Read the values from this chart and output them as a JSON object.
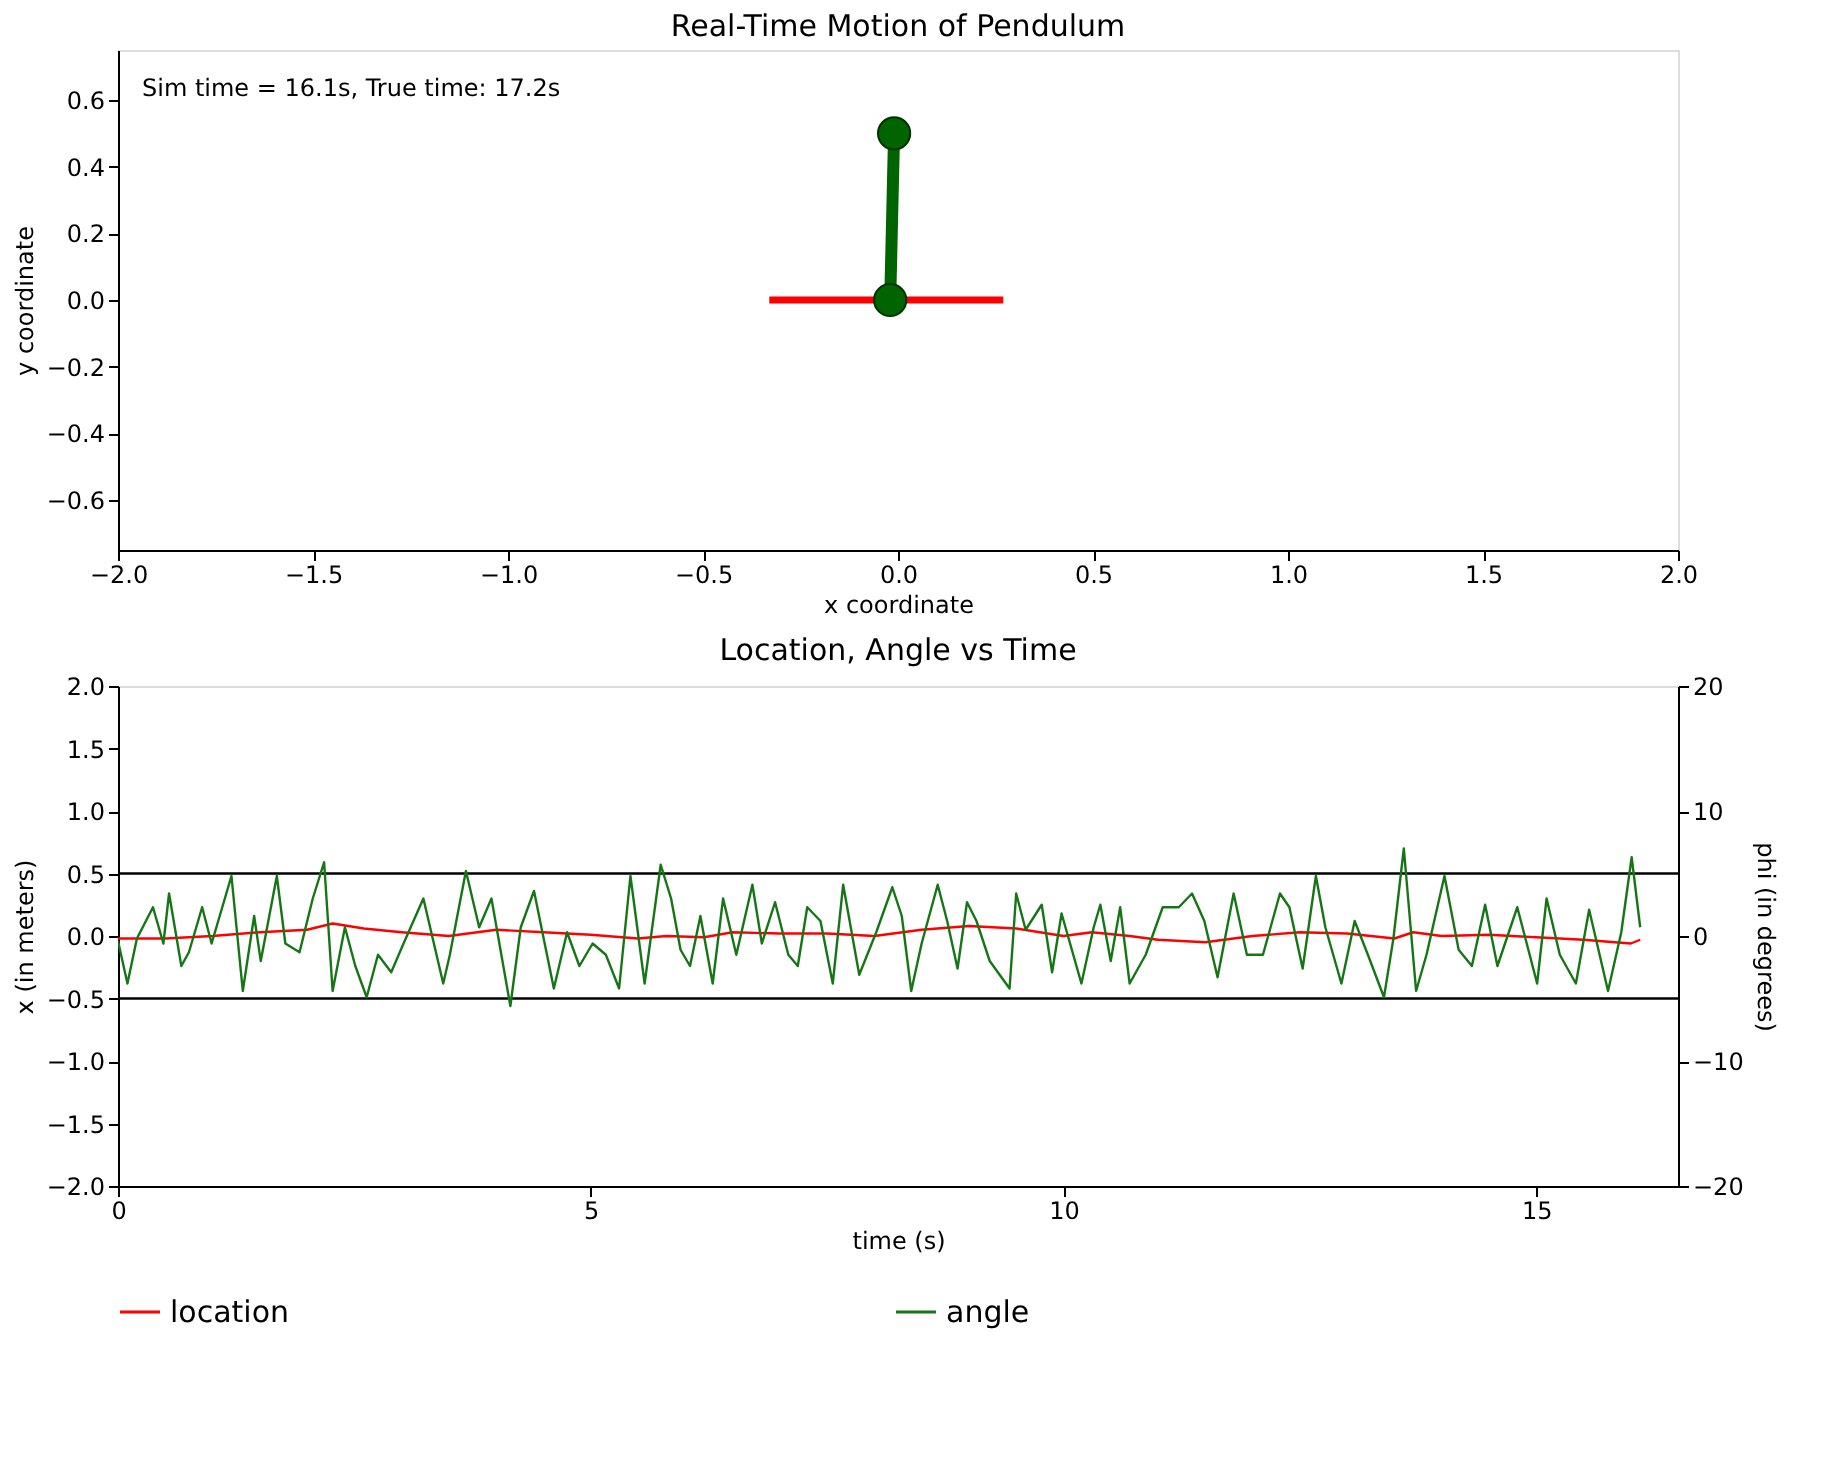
{
  "chart_data": [
    {
      "type": "line",
      "title": "Real-Time Motion of Pendulum",
      "xlabel": "x coordinate",
      "ylabel": "y coordinate",
      "annotations": [
        "Sim time = 16.1s, True time: 17.2s"
      ],
      "grid": false,
      "legend": false,
      "xlim": [
        -2,
        2
      ],
      "ylim": [
        -0.75,
        0.75
      ],
      "xticks": [
        {
          "value": -2,
          "label": "−2.0"
        },
        {
          "value": -1.5,
          "label": "−1.5"
        },
        {
          "value": -1,
          "label": "−1.0"
        },
        {
          "value": -0.5,
          "label": "−0.5"
        },
        {
          "value": 0,
          "label": "0.0"
        },
        0.5,
        {
          "value": 1,
          "label": "1.0"
        },
        1.5,
        {
          "value": 2,
          "label": "2.0"
        }
      ],
      "yticks": [
        {
          "value": -0.6,
          "label": "−0.6"
        },
        {
          "value": -0.4,
          "label": "−0.4"
        },
        {
          "value": -0.2,
          "label": "−0.2"
        },
        {
          "value": 0,
          "label": "0.0"
        },
        0.2,
        0.4,
        0.6
      ],
      "series": [
        {
          "color": "#ff0000",
          "x": [
            -0.33,
            0.27
          ],
          "values": [
            0,
            0
          ],
          "marker": "none"
        },
        {
          "color": "#006400",
          "x": [
            -0.02,
            -0.01
          ],
          "values": [
            0,
            0.5
          ],
          "marker": "circle"
        }
      ]
    },
    {
      "type": "line",
      "title": "Location, Angle vs Time",
      "xlabel": "time (s)",
      "ylabel": "x (in meters)",
      "y2label": "phi (in degrees)",
      "grid": false,
      "legend": "bottom",
      "xlim": [
        0,
        16.5
      ],
      "ylim": [
        -2,
        2
      ],
      "y2lim": [
        -20,
        20
      ],
      "xticks": [
        0,
        5,
        10,
        15
      ],
      "yticks": [
        {
          "value": -2,
          "label": "−2.0"
        },
        {
          "value": -1.5,
          "label": "−1.5"
        },
        {
          "value": -1,
          "label": "−1.0"
        },
        {
          "value": -0.5,
          "label": "−0.5"
        },
        {
          "value": 0,
          "label": "0.0"
        },
        0.5,
        {
          "value": 1,
          "label": "1.0"
        },
        1.5,
        {
          "value": 2,
          "label": "2.0"
        }
      ],
      "y2ticks": [
        {
          "value": -20,
          "label": "−20"
        },
        {
          "value": -10,
          "label": "−10"
        },
        0,
        10,
        20
      ],
      "ref_lines": [
        {
          "axis": "y",
          "value": 0.5,
          "color": "#000000"
        },
        {
          "axis": "y",
          "value": -0.5,
          "color": "#000000"
        }
      ],
      "series": [
        {
          "name": "location",
          "color": "#ff0000",
          "axis": "y",
          "marker": "none",
          "x": [
            0,
            0.5,
            1,
            1.5,
            2,
            2.27,
            2.6,
            3,
            3.5,
            4,
            4.5,
            5,
            5.5,
            5.8,
            6.2,
            6.5,
            7,
            7.5,
            8,
            8.5,
            9,
            9.5,
            10,
            10.3,
            10.7,
            11,
            11.5,
            12,
            12.5,
            13,
            13.5,
            13.7,
            14,
            14.5,
            15,
            15.5,
            16,
            16.1
          ],
          "values": [
            -0.02,
            -0.02,
            0.0,
            0.03,
            0.05,
            0.1,
            0.06,
            0.03,
            0.0,
            0.05,
            0.03,
            0.01,
            -0.02,
            0.0,
            -0.01,
            0.03,
            0.02,
            0.02,
            0.0,
            0.05,
            0.08,
            0.06,
            0.0,
            0.03,
            0.0,
            -0.03,
            -0.05,
            0.0,
            0.03,
            0.02,
            -0.02,
            0.03,
            0.0,
            0.01,
            -0.01,
            -0.03,
            -0.06,
            -0.03
          ]
        },
        {
          "name": "angle",
          "color": "#167616",
          "axis": "y2",
          "marker": "none",
          "x": [
            0,
            0.1,
            0.2,
            0.37,
            0.48,
            0.54,
            0.67,
            0.75,
            0.89,
            0.99,
            1.06,
            1.2,
            1.32,
            1.44,
            1.51,
            1.68,
            1.77,
            1.92,
            2.06,
            2.18,
            2.27,
            2.4,
            2.51,
            2.63,
            2.75,
            2.89,
            3.02,
            3.23,
            3.44,
            3.51,
            3.68,
            3.82,
            3.95,
            4.15,
            4.26,
            4.4,
            4.61,
            4.75,
            4.88,
            5.02,
            5.16,
            5.3,
            5.42,
            5.57,
            5.74,
            5.85,
            5.95,
            6.05,
            6.16,
            6.29,
            6.4,
            6.54,
            6.71,
            6.81,
            6.95,
            7.09,
            7.19,
            7.29,
            7.43,
            7.56,
            7.67,
            7.84,
            8.02,
            8.19,
            8.29,
            8.39,
            8.5,
            8.67,
            8.77,
            8.88,
            8.98,
            9.08,
            9.22,
            9.43,
            9.5,
            9.6,
            9.77,
            9.88,
            9.98,
            10.19,
            10.32,
            10.39,
            10.5,
            10.6,
            10.7,
            10.87,
            11.05,
            11.22,
            11.36,
            11.49,
            11.63,
            11.8,
            11.94,
            12.11,
            12.29,
            12.39,
            12.53,
            12.67,
            12.77,
            12.94,
            13.08,
            13.22,
            13.39,
            13.49,
            13.6,
            13.73,
            13.84,
            14.03,
            14.18,
            14.32,
            14.46,
            14.59,
            14.8,
            15.01,
            15.11,
            15.25,
            15.42,
            15.56,
            15.76,
            15.9,
            16.01,
            16.1
          ],
          "values": [
            -0.4,
            -3.8,
            -0.2,
            2.3,
            -0.6,
            3.4,
            -2.4,
            -1.3,
            2.3,
            -0.6,
            1.2,
            4.8,
            -4.4,
            1.6,
            -2.0,
            4.8,
            -0.6,
            -1.3,
            3.0,
            5.9,
            -4.4,
            0.7,
            -2.4,
            -4.9,
            -1.5,
            -2.9,
            -0.6,
            3.0,
            -3.8,
            -1.5,
            5.2,
            0.7,
            3.0,
            -5.6,
            0.7,
            3.6,
            -4.2,
            0.3,
            -2.4,
            -0.6,
            -1.5,
            -4.2,
            4.8,
            -3.8,
            5.7,
            3.0,
            -1.1,
            -2.4,
            1.6,
            -3.8,
            3.0,
            -1.5,
            4.1,
            -0.6,
            2.7,
            -1.5,
            -2.4,
            2.3,
            1.2,
            -3.8,
            4.1,
            -3.1,
            0.3,
            3.9,
            1.6,
            -4.4,
            -0.6,
            4.1,
            1.2,
            -2.6,
            2.7,
            1.2,
            -2.0,
            -4.2,
            3.4,
            0.5,
            2.5,
            -2.9,
            1.8,
            -3.8,
            0.7,
            2.5,
            -2.0,
            2.3,
            -3.8,
            -1.5,
            2.3,
            2.3,
            3.4,
            1.2,
            -3.3,
            3.4,
            -1.5,
            -1.5,
            3.4,
            2.3,
            -2.6,
            4.8,
            0.7,
            -3.8,
            1.2,
            -1.5,
            -4.9,
            -0.2,
            7.0,
            -4.4,
            -1.5,
            4.8,
            -1.1,
            -2.4,
            2.5,
            -2.4,
            2.3,
            -3.8,
            3.0,
            -1.5,
            -3.8,
            2.1,
            -4.4,
            0.3,
            6.3,
            0.7
          ]
        }
      ]
    }
  ]
}
